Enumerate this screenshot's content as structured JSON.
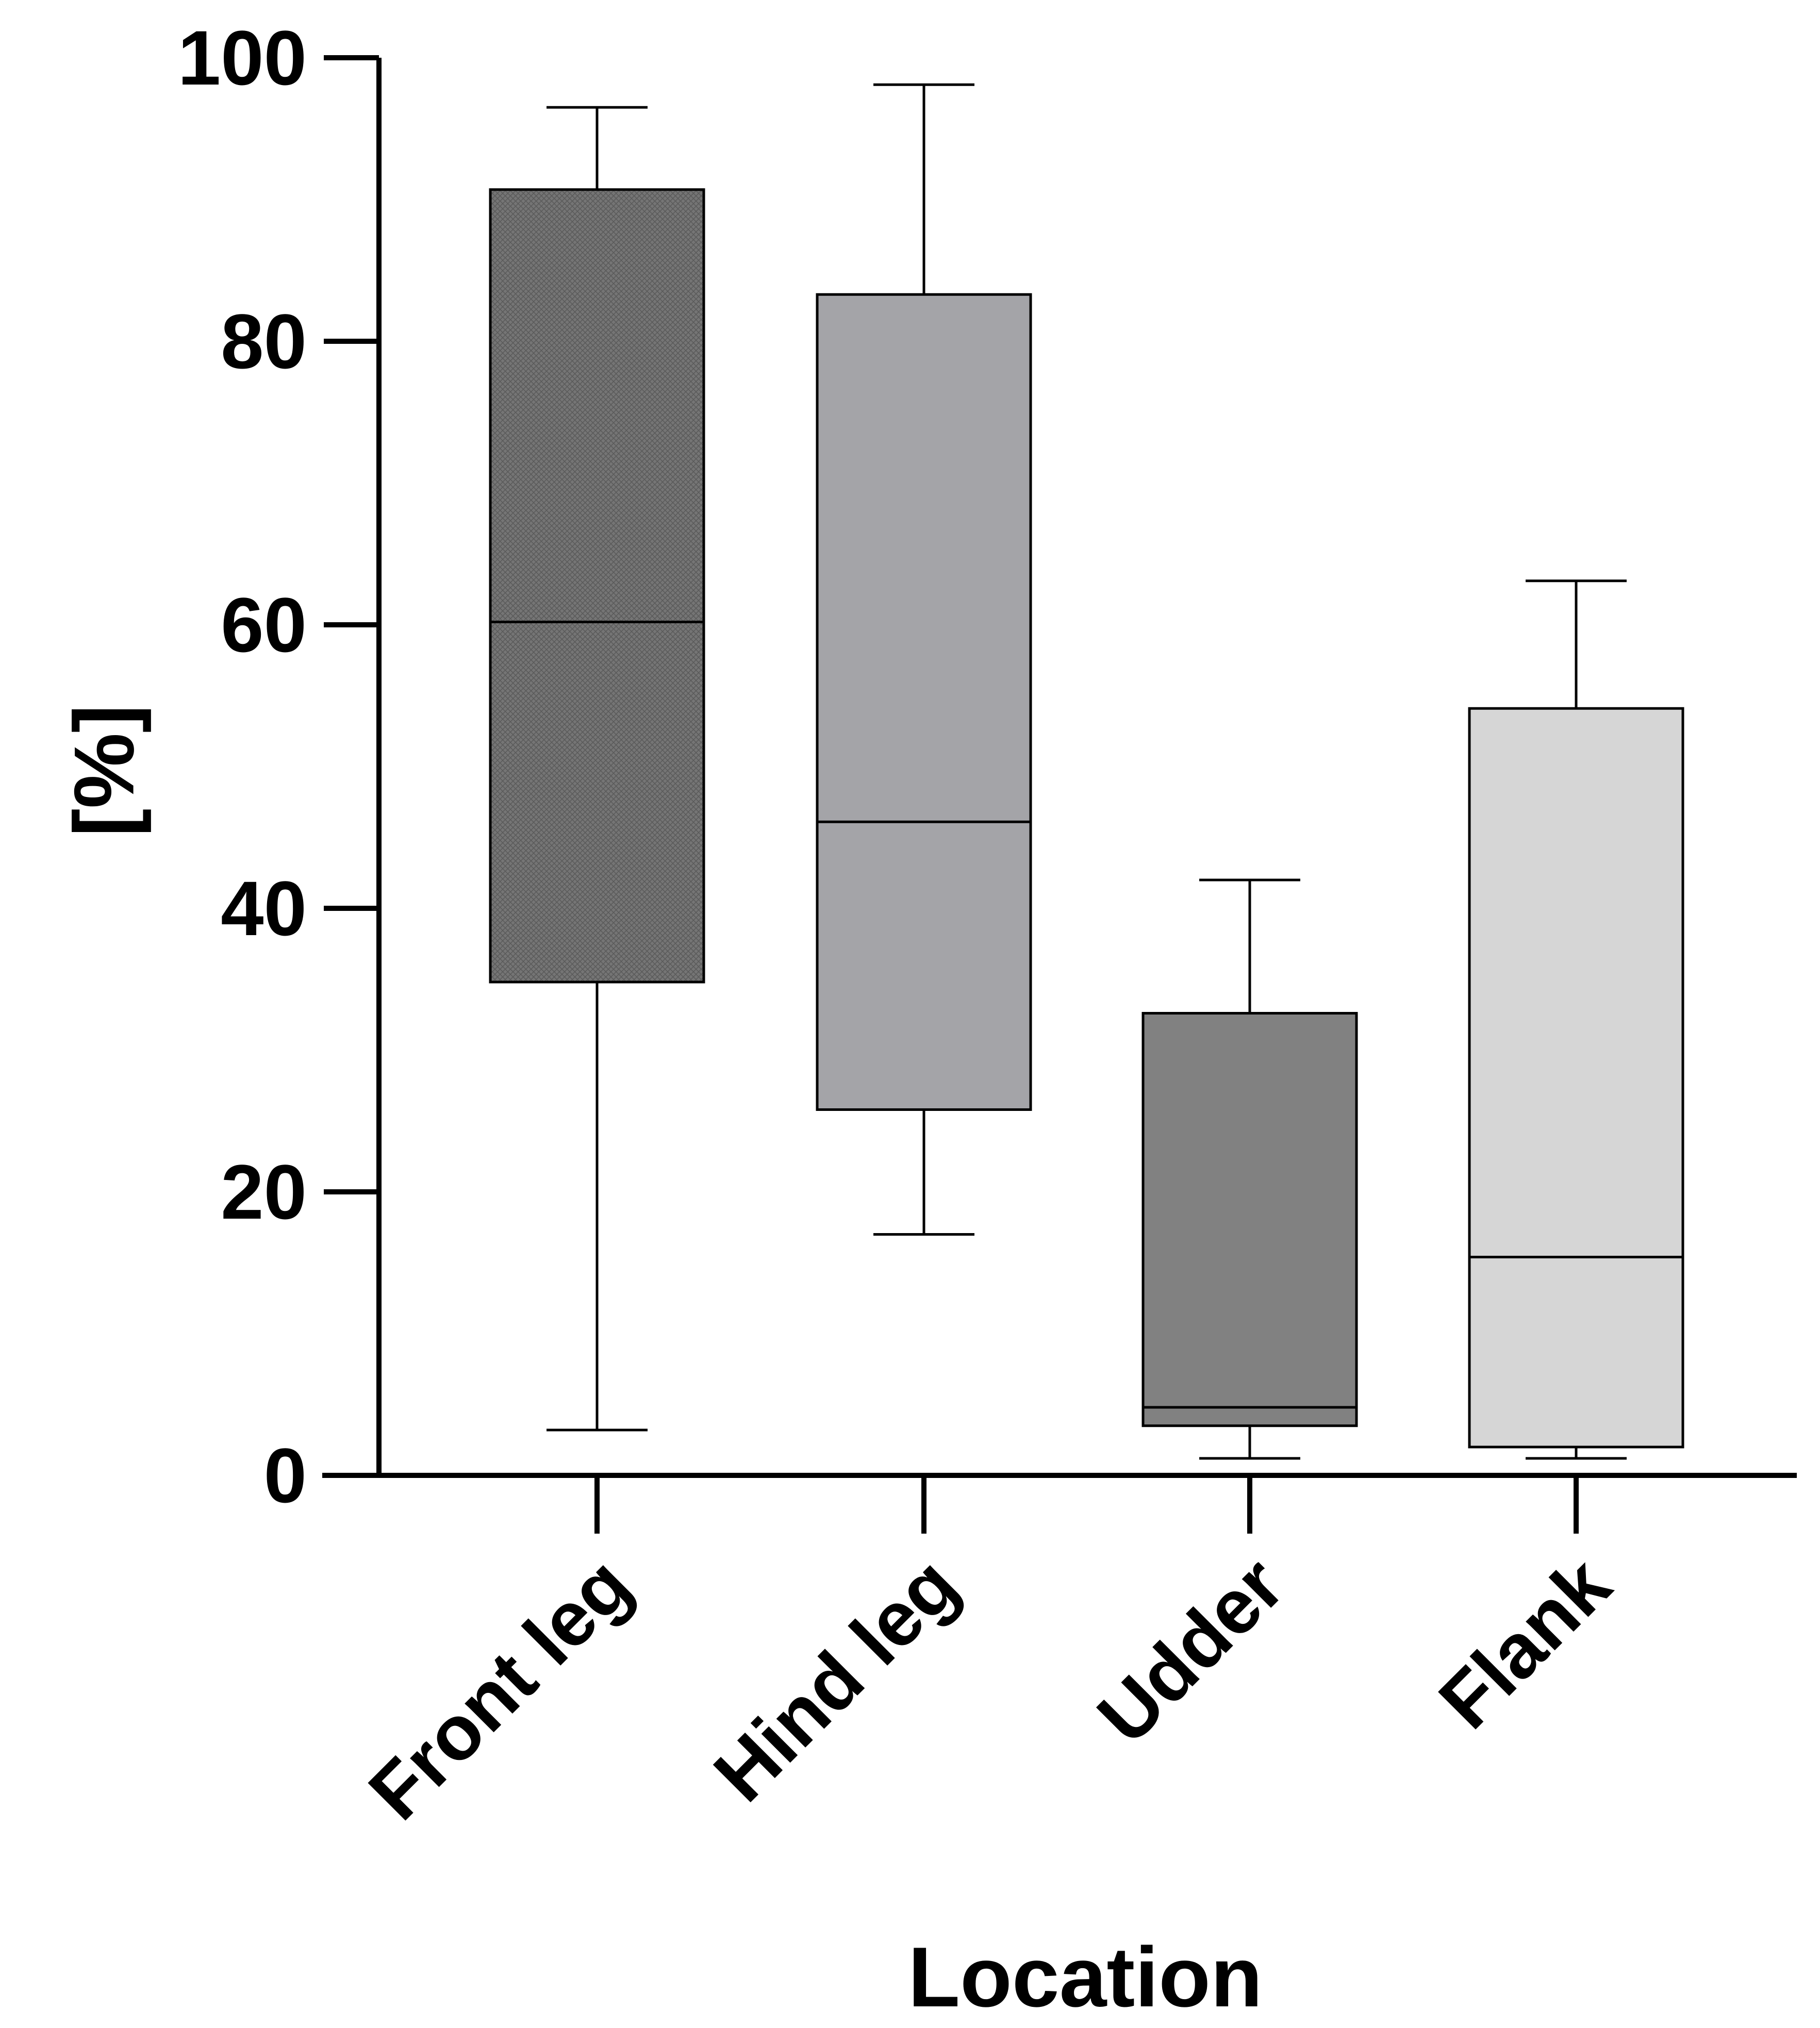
{
  "chart_data": {
    "type": "box",
    "title": "",
    "xlabel": "Location",
    "ylabel": "[%]",
    "ylim": [
      0,
      100
    ],
    "yticks": [
      "0",
      "20",
      "40",
      "60",
      "80",
      "100"
    ],
    "grid": false,
    "categories": [
      "Front leg",
      "Hind leg",
      "Udder",
      "Flank"
    ],
    "boxes": [
      {
        "category": "Front leg",
        "min": 3.2,
        "q1": 34.8,
        "median": 60.2,
        "q3": 90.7,
        "max": 96.5,
        "fill": "#6e6e6e",
        "pattern": "crosshatch"
      },
      {
        "category": "Hind leg",
        "min": 17.0,
        "q1": 25.8,
        "median": 46.1,
        "q3": 83.3,
        "max": 98.1,
        "fill": "#a4a4a8",
        "pattern": "none"
      },
      {
        "category": "Udder",
        "min": 1.2,
        "q1": 3.5,
        "median": 4.8,
        "q3": 32.6,
        "max": 42.0,
        "fill": "#818181",
        "pattern": "none"
      },
      {
        "category": "Flank",
        "min": 1.2,
        "q1": 2.0,
        "median": 15.4,
        "q3": 54.1,
        "max": 63.1,
        "fill": "#d6d6d6",
        "pattern": "none"
      }
    ]
  }
}
